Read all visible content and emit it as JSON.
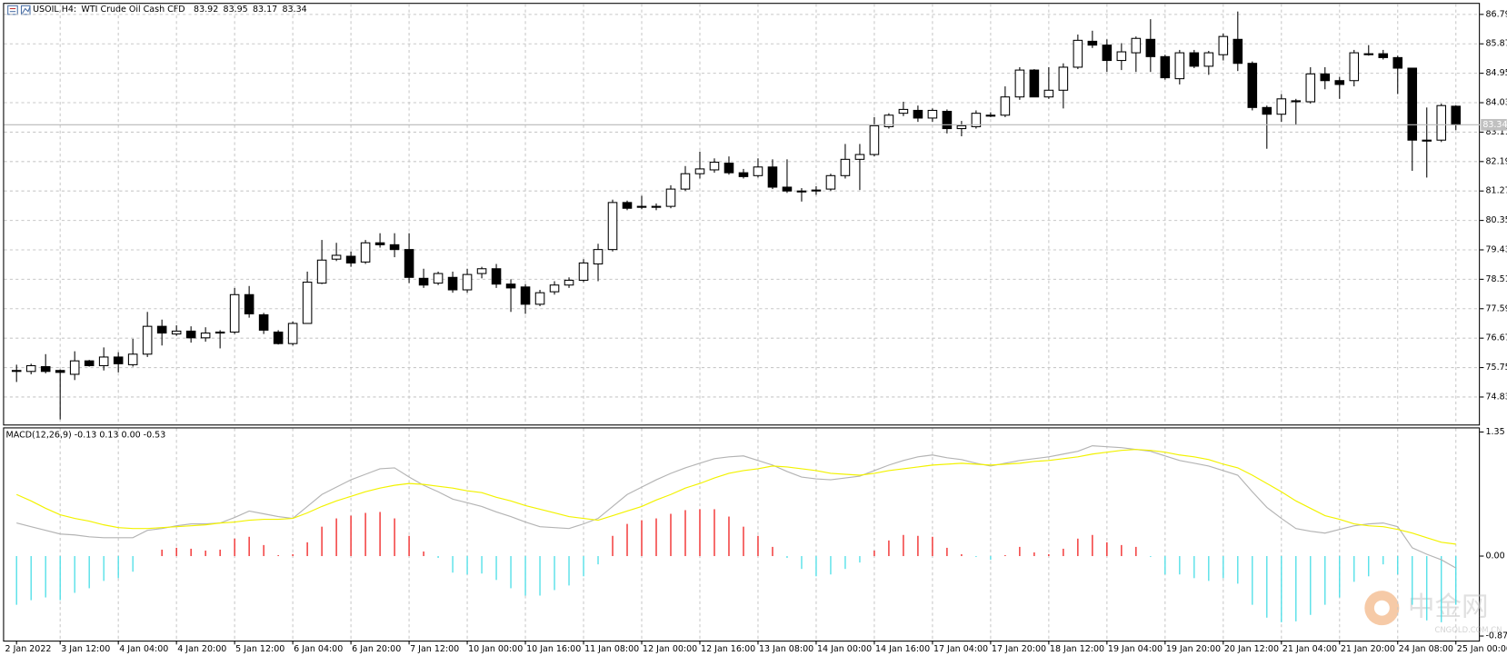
{
  "chart_data": [
    {
      "type": "candlestick",
      "title": "USOIL,H4:",
      "subtitle": "WTI Crude Oil Cash CFD",
      "categories": [
        "2 Jan 2022",
        null,
        null,
        "3 Jan 12:00",
        null,
        null,
        null,
        "4 Jan 04:00",
        null,
        null,
        null,
        "4 Jan 20:00",
        null,
        null,
        null,
        "5 Jan 12:00",
        null,
        null,
        null,
        "6 Jan 04:00",
        null,
        null,
        null,
        "6 Jan 20:00",
        null,
        null,
        null,
        "7 Jan 12:00",
        null,
        null,
        null,
        "10 Jan 00:00",
        null,
        null,
        null,
        "10 Jan 16:00",
        null,
        null,
        null,
        "11 Jan 08:00",
        null,
        null,
        null,
        "12 Jan 00:00",
        null,
        null,
        null,
        "12 Jan 16:00",
        null,
        null,
        null,
        "13 Jan 08:00",
        null,
        null,
        null,
        "14 Jan 00:00",
        null,
        null,
        null,
        "14 Jan 16:00",
        null,
        null,
        null,
        "17 Jan 04:00",
        null,
        null,
        null,
        "17 Jan 20:00",
        null,
        null,
        null,
        "18 Jan 12:00",
        null,
        null,
        null,
        "19 Jan 04:00",
        null,
        null,
        null,
        "19 Jan 20:00",
        null,
        null,
        null,
        "20 Jan 12:00",
        null,
        null,
        null,
        "21 Jan 04:00",
        null,
        null,
        null,
        "21 Jan 20:00",
        null,
        null,
        null,
        "24 Jan 08:00",
        null,
        null,
        null,
        "25 Jan 00:00"
      ],
      "open": [
        75.66,
        75.63,
        75.78,
        75.66,
        75.54,
        75.96,
        75.81,
        76.08,
        75.84,
        76.17,
        77.04,
        76.8,
        76.89,
        76.68,
        76.86,
        76.86,
        78.03,
        77.4,
        76.86,
        76.5,
        77.13,
        78.39,
        79.14,
        79.23,
        79.05,
        79.65,
        79.59,
        79.44,
        78.54,
        78.39,
        78.57,
        78.18,
        78.69,
        78.84,
        78.36,
        78.27,
        77.73,
        78.12,
        78.33,
        78.48,
        78.99,
        79.44,
        80.91,
        80.79,
        80.79,
        80.79,
        81.33,
        81.81,
        81.93,
        82.14,
        81.84,
        81.75,
        82.02,
        81.39,
        81.27,
        81.3,
        81.33,
        81.75,
        82.26,
        82.41,
        83.28,
        83.7,
        83.79,
        83.55,
        83.76,
        83.22,
        83.28,
        83.64,
        83.64,
        84.21,
        85.05,
        84.21,
        84.42,
        85.14,
        85.95,
        85.83,
        85.35,
        85.59,
        86.01,
        85.47,
        84.78,
        85.59,
        85.17,
        85.53,
        86.01,
        85.26,
        83.88,
        83.67,
        84.09,
        84.06,
        84.93,
        84.72,
        84.72,
        85.56,
        85.56,
        85.44,
        85.11,
        82.86,
        82.86,
        83.92
      ],
      "high": [
        75.84,
        75.87,
        76.17,
        75.69,
        76.26,
        75.99,
        76.38,
        76.23,
        76.65,
        77.49,
        77.25,
        77.07,
        77.04,
        77.01,
        76.92,
        78.24,
        78.3,
        77.46,
        76.92,
        77.19,
        78.75,
        79.74,
        79.65,
        79.38,
        79.74,
        79.95,
        79.95,
        79.95,
        78.84,
        78.75,
        78.75,
        78.84,
        78.9,
        78.99,
        78.51,
        78.36,
        78.18,
        78.45,
        78.57,
        79.14,
        79.62,
        81.0,
        80.97,
        81.12,
        80.88,
        81.45,
        82.05,
        82.5,
        82.29,
        82.35,
        81.96,
        82.29,
        82.26,
        82.26,
        81.36,
        81.42,
        81.81,
        82.74,
        82.74,
        83.58,
        83.7,
        84.06,
        83.94,
        83.85,
        83.82,
        83.46,
        83.79,
        83.73,
        84.54,
        85.14,
        85.08,
        85.14,
        85.26,
        86.16,
        86.28,
        86.01,
        85.89,
        86.1,
        86.64,
        85.53,
        85.68,
        85.68,
        85.65,
        86.19,
        86.88,
        85.32,
        83.94,
        84.3,
        84.15,
        85.14,
        85.14,
        84.84,
        85.68,
        85.83,
        85.68,
        85.5,
        85.11,
        83.88,
        84.0,
        83.95
      ],
      "low": [
        75.3,
        75.54,
        75.57,
        74.13,
        75.36,
        75.78,
        75.66,
        75.6,
        75.78,
        76.08,
        76.44,
        76.74,
        76.53,
        76.56,
        76.35,
        76.8,
        77.31,
        76.8,
        76.47,
        76.44,
        77.13,
        78.36,
        79.08,
        78.9,
        78.99,
        79.5,
        79.2,
        78.39,
        78.24,
        78.33,
        78.09,
        78.09,
        78.54,
        78.24,
        77.49,
        77.43,
        77.67,
        78.03,
        78.24,
        78.42,
        78.45,
        79.38,
        80.67,
        80.7,
        80.67,
        80.73,
        81.27,
        81.66,
        81.84,
        81.78,
        81.66,
        81.69,
        81.33,
        81.21,
        80.94,
        81.15,
        81.27,
        81.66,
        81.3,
        82.35,
        83.22,
        83.61,
        83.43,
        83.43,
        83.07,
        82.98,
        83.22,
        83.58,
        83.58,
        84.12,
        84.21,
        84.15,
        83.85,
        85.08,
        85.74,
        84.99,
        85.05,
        84.99,
        84.99,
        84.75,
        84.6,
        85.11,
        84.9,
        85.35,
        85.02,
        83.79,
        82.59,
        83.43,
        83.34,
        84.0,
        84.45,
        84.15,
        84.54,
        85.5,
        85.38,
        84.3,
        81.9,
        81.69,
        82.8,
        83.17
      ],
      "close": [
        75.65,
        75.81,
        75.63,
        75.6,
        75.96,
        75.81,
        76.08,
        75.87,
        76.17,
        77.04,
        76.83,
        76.89,
        76.68,
        76.83,
        76.85,
        78.03,
        77.43,
        76.92,
        76.5,
        77.13,
        78.42,
        79.11,
        79.26,
        79.02,
        79.65,
        79.59,
        79.44,
        78.57,
        78.33,
        78.69,
        78.18,
        78.66,
        78.84,
        78.36,
        78.24,
        77.73,
        78.09,
        78.33,
        78.48,
        79.02,
        79.44,
        80.91,
        80.73,
        80.76,
        80.78,
        81.33,
        81.81,
        81.96,
        82.17,
        81.84,
        81.72,
        82.02,
        81.39,
        81.27,
        81.24,
        81.29,
        81.75,
        82.26,
        82.41,
        83.31,
        83.64,
        83.82,
        83.55,
        83.79,
        83.22,
        83.31,
        83.7,
        83.63,
        84.21,
        85.05,
        84.21,
        84.42,
        85.14,
        85.98,
        85.83,
        85.35,
        85.62,
        86.04,
        85.47,
        84.81,
        85.59,
        85.17,
        85.59,
        86.1,
        85.26,
        83.88,
        83.67,
        84.15,
        84.06,
        84.93,
        84.72,
        84.6,
        85.59,
        85.53,
        85.44,
        85.11,
        82.86,
        82.83,
        83.94,
        83.34
      ],
      "up_color": "#ffffff",
      "down_color": "#000000",
      "ylim": [
        73.97,
        87.15
      ],
      "yticks": [
        86.79,
        85.87,
        84.95,
        84.03,
        83.11,
        82.19,
        81.27,
        80.35,
        79.43,
        78.51,
        77.59,
        76.67,
        75.75,
        74.83
      ],
      "grid": true
    },
    {
      "type": "macd",
      "title": "MACD(12,26,9) -0.13 0.13 0.00 -0.53",
      "histogram": {
        "values": [
          -0.53,
          -0.48,
          -0.45,
          -0.48,
          -0.4,
          -0.35,
          -0.27,
          -0.24,
          -0.17,
          0,
          0.07,
          0.09,
          0.08,
          0.06,
          0.07,
          0.19,
          0.21,
          0.12,
          0.01,
          0.02,
          0.15,
          0.32,
          0.41,
          0.44,
          0.47,
          0.48,
          0.41,
          0.22,
          0.05,
          -0.02,
          -0.18,
          -0.2,
          -0.19,
          -0.26,
          -0.35,
          -0.43,
          -0.43,
          -0.37,
          -0.32,
          -0.22,
          -0.09,
          0.22,
          0.35,
          0.39,
          0.41,
          0.46,
          0.5,
          0.51,
          0.51,
          0.43,
          0.32,
          0.22,
          0.1,
          -0.02,
          -0.14,
          -0.22,
          -0.2,
          -0.14,
          -0.07,
          0.06,
          0.17,
          0.23,
          0.22,
          0.21,
          0.09,
          0.02,
          -0.01,
          -0.04,
          0.01,
          0.1,
          0.04,
          0.02,
          0.08,
          0.19,
          0.23,
          0.15,
          0.12,
          0.1,
          -0.01,
          -0.2,
          -0.2,
          -0.24,
          -0.27,
          -0.24,
          -0.3,
          -0.53,
          -0.67,
          -0.72,
          -0.71,
          -0.64,
          -0.53,
          -0.45,
          -0.28,
          -0.22,
          -0.09,
          -0.2,
          -0.53,
          -0.7,
          -0.72,
          -0.53
        ],
        "up_color": "#f01818",
        "down_color": "#44dde6"
      },
      "main": {
        "color": "#b4b4b4",
        "values": [
          0.36,
          0.32,
          0.28,
          0.24,
          0.23,
          0.21,
          0.2,
          0.2,
          0.2,
          0.28,
          0.3,
          0.33,
          0.35,
          0.35,
          0.36,
          0.42,
          0.49,
          0.46,
          0.43,
          0.41,
          0.54,
          0.67,
          0.75,
          0.83,
          0.89,
          0.95,
          0.96,
          0.86,
          0.77,
          0.7,
          0.62,
          0.58,
          0.54,
          0.48,
          0.43,
          0.37,
          0.32,
          0.31,
          0.3,
          0.35,
          0.41,
          0.54,
          0.67,
          0.75,
          0.83,
          0.9,
          0.96,
          1.01,
          1.06,
          1.08,
          1.09,
          1.04,
          0.99,
          0.92,
          0.86,
          0.84,
          0.83,
          0.85,
          0.87,
          0.93,
          0.99,
          1.04,
          1.08,
          1.1,
          1.07,
          1.05,
          1.01,
          0.98,
          1.01,
          1.04,
          1.06,
          1.08,
          1.11,
          1.14,
          1.2,
          1.19,
          1.18,
          1.16,
          1.14,
          1.09,
          1.04,
          1.01,
          0.98,
          0.93,
          0.88,
          0.7,
          0.53,
          0.41,
          0.3,
          0.27,
          0.25,
          0.29,
          0.33,
          0.35,
          0.36,
          0.32,
          0.09,
          0.02,
          -0.04,
          -0.13
        ]
      },
      "signal": {
        "color": "#f2f200",
        "values": [
          0.67,
          0.6,
          0.52,
          0.45,
          0.41,
          0.38,
          0.34,
          0.31,
          0.3,
          0.3,
          0.31,
          0.32,
          0.33,
          0.34,
          0.36,
          0.37,
          0.39,
          0.4,
          0.4,
          0.41,
          0.47,
          0.54,
          0.6,
          0.65,
          0.7,
          0.74,
          0.77,
          0.79,
          0.78,
          0.76,
          0.74,
          0.71,
          0.69,
          0.64,
          0.6,
          0.55,
          0.51,
          0.47,
          0.43,
          0.41,
          0.39,
          0.44,
          0.49,
          0.54,
          0.61,
          0.67,
          0.74,
          0.79,
          0.85,
          0.9,
          0.93,
          0.95,
          0.98,
          0.97,
          0.95,
          0.93,
          0.9,
          0.89,
          0.88,
          0.9,
          0.93,
          0.95,
          0.97,
          0.99,
          1.0,
          1.01,
          1.0,
          0.99,
          1.0,
          1.01,
          1.03,
          1.04,
          1.06,
          1.08,
          1.11,
          1.13,
          1.15,
          1.16,
          1.15,
          1.13,
          1.1,
          1.08,
          1.05,
          1.0,
          0.96,
          0.88,
          0.79,
          0.7,
          0.6,
          0.52,
          0.44,
          0.4,
          0.35,
          0.33,
          0.32,
          0.29,
          0.25,
          0.2,
          0.15,
          0.13
        ]
      },
      "ylim": [
        -0.92,
        1.4
      ],
      "yticks": [
        1.35,
        {
          "value": 0,
          "label": "0.00"
        },
        -0.87
      ]
    }
  ],
  "watermark": {
    "name": "中金网",
    "site": "CNGOLD.COM.CN"
  }
}
